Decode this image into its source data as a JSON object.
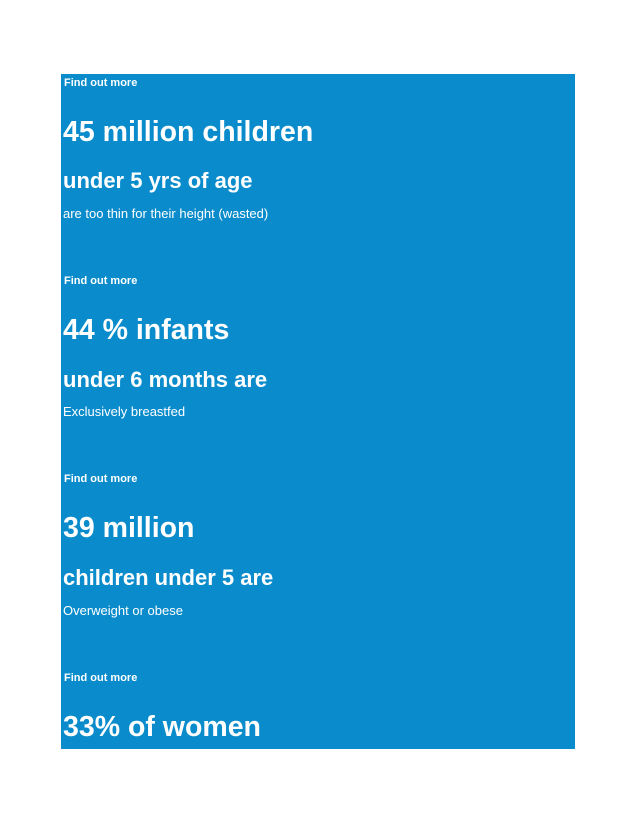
{
  "colors": {
    "panel_background": "#0a8ccc",
    "text": "#ffffff"
  },
  "stats": [
    {
      "link": "Find out more"
    },
    {
      "headline": "45 million children",
      "subheadline": "under 5 yrs of age",
      "description": "are too thin for their height (wasted)",
      "link": "Find out more"
    },
    {
      "headline": "44 % infants",
      "subheadline": "under 6 months are",
      "description": "Exclusively breastfed",
      "link": "Find out more"
    },
    {
      "headline": "39 million",
      "subheadline": "children under 5 are",
      "description": "Overweight or obese",
      "link": "Find out more"
    },
    {
      "headline": "33% of women"
    }
  ]
}
